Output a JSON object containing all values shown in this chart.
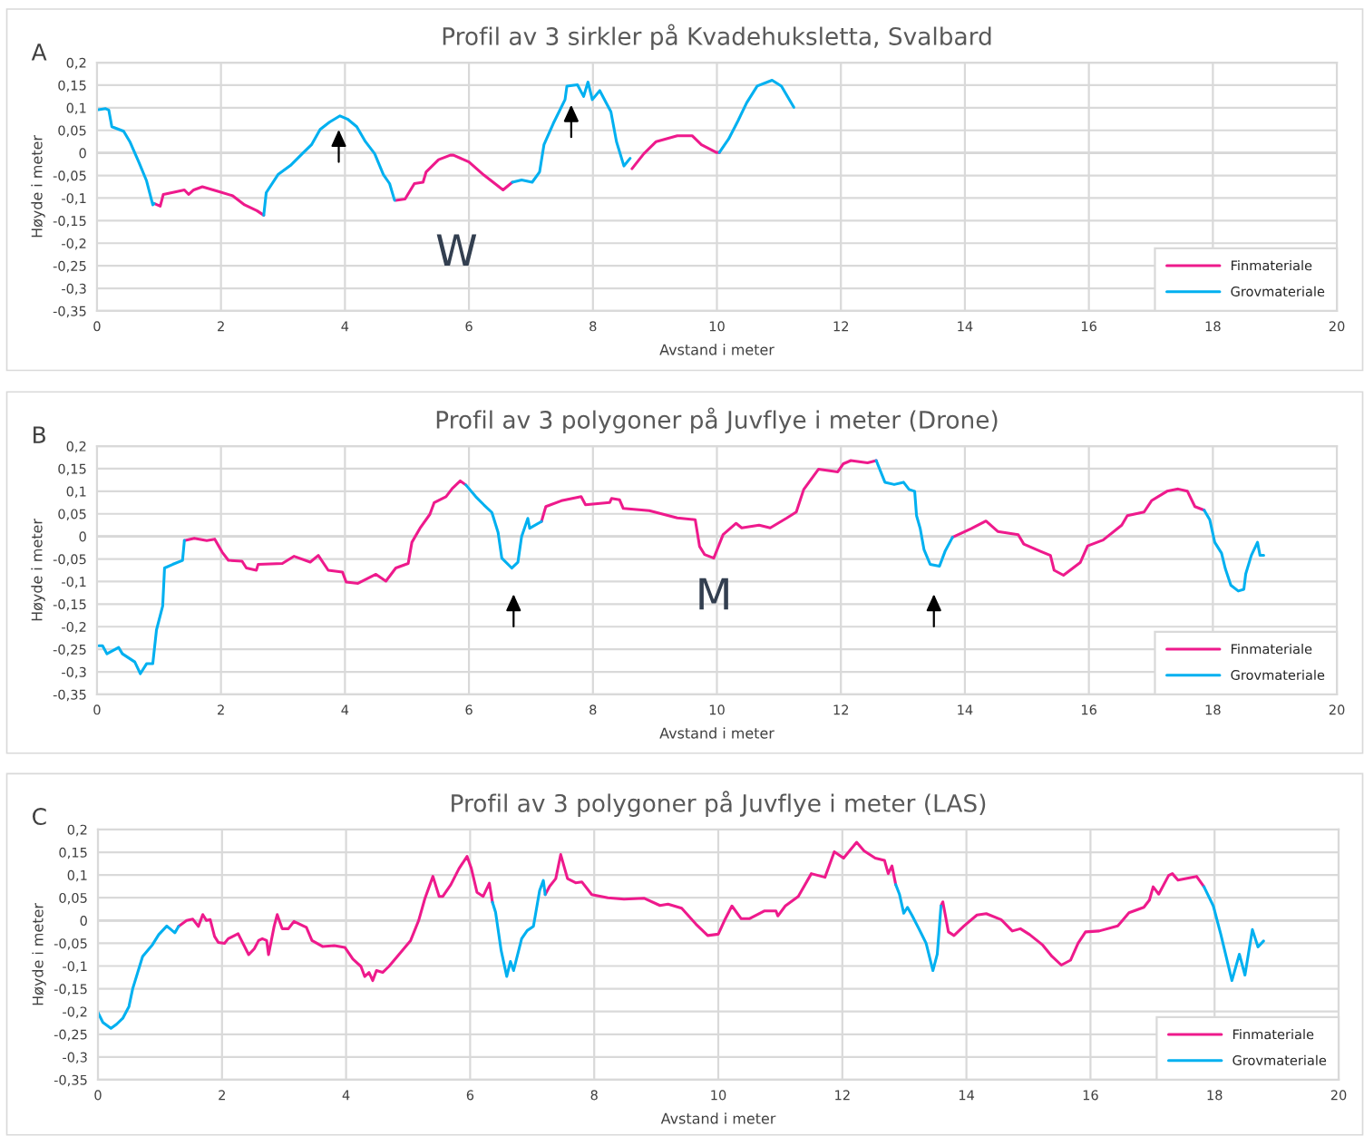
{
  "chart_data": [
    {
      "type": "line",
      "title": "Profil av 3 sirkler på Kvadehuksletta, Svalbard",
      "xlabel": "Avstand i meter",
      "ylabel": "Høyde i meter",
      "xlim": [
        0,
        20
      ],
      "xticks": [
        0,
        2,
        4,
        6,
        8,
        10,
        12,
        14,
        16,
        18,
        20
      ],
      "ylim": [
        -0.35,
        0.2
      ],
      "yticks": [
        {
          "value": 0.2,
          "label": "0,2"
        },
        {
          "value": 0.15,
          "label": "0,15"
        },
        {
          "value": 0.1,
          "label": "0,1"
        },
        {
          "value": 0.05,
          "label": "0,05"
        },
        {
          "value": 0,
          "label": "0"
        },
        {
          "value": -0.05,
          "label": "-0,05"
        },
        {
          "value": -0.1,
          "label": "-0,1"
        },
        {
          "value": -0.15,
          "label": "-0,15"
        },
        {
          "value": -0.2,
          "label": "-0,2"
        },
        {
          "value": -0.25,
          "label": "-0,25"
        },
        {
          "value": -0.3,
          "label": "-0,3"
        },
        {
          "value": -0.35,
          "label": "-0,35"
        }
      ],
      "grid": true,
      "legend": "bottom right",
      "annotations": [
        "A",
        "W"
      ],
      "series": [
        {
          "name": "Finmateriale",
          "color": "#ee1a8c",
          "x": [
            0.92,
            1.02,
            1.07,
            1.31,
            1.41,
            1.48,
            1.56,
            1.7,
            1.95,
            2.19,
            2.38,
            2.58,
            2.69,
            2.7,
            4.8,
            4.82,
            4.97,
            5.12,
            5.26,
            5.31,
            5.51,
            5.7,
            5.75,
            6.0,
            6.24,
            6.55,
            6.7,
            6.71,
            8.6,
            8.63,
            8.82,
            9.02,
            9.36,
            9.6,
            9.75,
            9.99,
            10.04
          ],
          "values": [
            -0.112,
            -0.118,
            -0.092,
            -0.085,
            -0.082,
            -0.092,
            -0.082,
            -0.075,
            -0.085,
            -0.095,
            -0.115,
            -0.128,
            -0.138,
            null,
            null,
            -0.105,
            -0.102,
            -0.068,
            -0.065,
            -0.042,
            -0.015,
            -0.005,
            -0.005,
            -0.02,
            -0.049,
            -0.082,
            -0.065,
            null,
            null,
            -0.035,
            -0.002,
            0.025,
            0.038,
            0.038,
            0.018,
            0.001,
            0.001
          ]
        },
        {
          "name": "Grovmateriale",
          "color": "#00b0f0",
          "x": [
            0.0,
            0.14,
            0.19,
            0.24,
            0.43,
            0.53,
            0.68,
            0.8,
            0.9,
            0.92,
            1.0,
            2.69,
            2.73,
            2.92,
            3.12,
            3.31,
            3.46,
            3.6,
            3.75,
            3.92,
            4.04,
            4.19,
            4.33,
            4.48,
            4.62,
            4.72,
            4.8,
            4.81,
            6.6,
            6.7,
            6.85,
            7.02,
            7.14,
            7.21,
            7.36,
            7.55,
            7.58,
            7.75,
            7.85,
            7.92,
            7.99,
            8.11,
            8.29,
            8.38,
            8.5,
            8.6,
            8.61,
            10.0,
            10.04,
            10.19,
            10.34,
            10.48,
            10.65,
            10.89,
            11.04,
            11.24
          ],
          "values": [
            0.095,
            0.098,
            0.095,
            0.058,
            0.048,
            0.025,
            -0.022,
            -0.062,
            -0.115,
            -0.112,
            null,
            -0.138,
            -0.088,
            -0.048,
            -0.028,
            -0.002,
            0.018,
            0.052,
            0.068,
            0.082,
            0.075,
            0.058,
            0.025,
            -0.002,
            -0.048,
            -0.068,
            -0.105,
            null,
            null,
            -0.065,
            -0.06,
            -0.065,
            -0.042,
            0.018,
            0.065,
            0.118,
            0.148,
            0.151,
            0.125,
            0.157,
            0.118,
            0.138,
            0.091,
            0.025,
            -0.029,
            -0.012,
            null,
            null,
            0.001,
            0.031,
            0.071,
            0.111,
            0.148,
            0.161,
            0.148,
            0.101
          ]
        }
      ]
    },
    {
      "type": "line",
      "title": "Profil av 3 polygoner på Juvflye i meter (Drone)",
      "xlabel": "Avstand i meter",
      "ylabel": "Høyde i meter",
      "xlim": [
        0,
        20
      ],
      "xticks": [
        0,
        2,
        4,
        6,
        8,
        10,
        12,
        14,
        16,
        18,
        20
      ],
      "ylim": [
        -0.35,
        0.2
      ],
      "yticks": [
        {
          "value": 0.2,
          "label": "0,2"
        },
        {
          "value": 0.15,
          "label": "0,15"
        },
        {
          "value": 0.1,
          "label": "0,1"
        },
        {
          "value": 0.05,
          "label": "0,05"
        },
        {
          "value": 0,
          "label": "0"
        },
        {
          "value": -0.05,
          "label": "-0,05"
        },
        {
          "value": -0.1,
          "label": "-0,1"
        },
        {
          "value": -0.15,
          "label": "-0,15"
        },
        {
          "value": -0.2,
          "label": "-0,2"
        },
        {
          "value": -0.25,
          "label": "-0,25"
        },
        {
          "value": -0.3,
          "label": "-0,3"
        },
        {
          "value": -0.35,
          "label": "-0,35"
        }
      ],
      "grid": true,
      "legend": "bottom right",
      "annotations": [
        "B",
        "M"
      ],
      "series": [
        {
          "name": "Finmateriale",
          "color": "#ee1a8c",
          "x": [
            1.41,
            1.57,
            1.77,
            1.9,
            2.02,
            2.12,
            2.34,
            2.41,
            2.57,
            2.6,
            2.99,
            3.18,
            3.44,
            3.57,
            3.73,
            3.96,
            4.02,
            4.21,
            4.5,
            4.66,
            4.82,
            5.02,
            5.08,
            5.21,
            5.37,
            5.44,
            5.63,
            5.73,
            5.86,
            5.95,
            5.96,
            7.16,
            7.17,
            7.24,
            7.49,
            7.81,
            7.88,
            8.27,
            8.3,
            8.43,
            8.49,
            8.91,
            9.36,
            9.65,
            9.72,
            9.8,
            9.95,
            10.1,
            10.31,
            10.4,
            10.68,
            10.86,
            11.13,
            11.28,
            11.4,
            11.64,
            11.95,
            12.04,
            12.16,
            12.43,
            12.57,
            12.58,
            13.79,
            13.8,
            14.1,
            14.34,
            14.53,
            14.86,
            14.95,
            15.22,
            15.38,
            15.44,
            15.59,
            15.86,
            15.98,
            16.23,
            16.53,
            16.62,
            16.89,
            17.01,
            17.26,
            17.44,
            17.59,
            17.71,
            17.86
          ],
          "values": [
            -0.009,
            -0.004,
            -0.009,
            -0.006,
            -0.035,
            -0.053,
            -0.055,
            -0.07,
            -0.075,
            -0.062,
            -0.06,
            -0.044,
            -0.057,
            -0.042,
            -0.075,
            -0.079,
            -0.101,
            -0.104,
            -0.084,
            -0.099,
            -0.07,
            -0.06,
            -0.013,
            0.018,
            0.049,
            0.075,
            0.088,
            0.106,
            0.123,
            0.114,
            null,
            null,
            0.033,
            0.066,
            0.079,
            0.088,
            0.07,
            0.075,
            0.084,
            0.081,
            0.062,
            0.057,
            0.041,
            0.037,
            -0.022,
            -0.04,
            -0.048,
            0.004,
            0.029,
            0.019,
            0.025,
            0.019,
            0.041,
            0.054,
            0.104,
            0.149,
            0.143,
            0.161,
            0.168,
            0.163,
            0.168,
            null,
            null,
            -0.002,
            0.017,
            0.034,
            0.011,
            0.004,
            -0.017,
            -0.033,
            -0.042,
            -0.075,
            -0.086,
            -0.058,
            -0.021,
            -0.008,
            0.025,
            0.046,
            0.054,
            0.079,
            0.1,
            0.105,
            0.1,
            0.066,
            0.058
          ]
        },
        {
          "name": "Grovmateriale",
          "color": "#00b0f0",
          "x": [
            0.03,
            0.09,
            0.16,
            0.35,
            0.41,
            0.61,
            0.7,
            0.8,
            0.9,
            0.96,
            1.06,
            1.09,
            1.22,
            1.38,
            1.41,
            1.42,
            5.94,
            5.95,
            6.11,
            6.24,
            6.37,
            6.47,
            6.53,
            6.69,
            6.79,
            6.85,
            6.95,
            6.98,
            7.17,
            7.18,
            12.56,
            12.57,
            12.71,
            12.86,
            13.01,
            13.1,
            13.19,
            13.22,
            13.28,
            13.34,
            13.44,
            13.59,
            13.68,
            13.8,
            13.81,
            17.85,
            17.86,
            17.95,
            18.03,
            18.14,
            18.2,
            18.29,
            18.41,
            18.5,
            18.53,
            18.62,
            18.72,
            18.76,
            18.82
          ],
          "values": [
            -0.242,
            -0.242,
            -0.26,
            -0.246,
            -0.26,
            -0.278,
            -0.304,
            -0.282,
            -0.282,
            -0.207,
            -0.154,
            -0.07,
            -0.062,
            -0.053,
            -0.009,
            null,
            null,
            0.114,
            0.088,
            0.07,
            0.053,
            0.009,
            -0.048,
            -0.07,
            -0.057,
            0.0,
            0.04,
            0.018,
            0.033,
            null,
            null,
            0.168,
            0.12,
            0.115,
            0.12,
            0.104,
            0.1,
            0.046,
            0.017,
            -0.029,
            -0.062,
            -0.066,
            -0.033,
            -0.002,
            null,
            null,
            0.058,
            0.037,
            -0.013,
            -0.037,
            -0.071,
            -0.108,
            -0.121,
            -0.117,
            -0.083,
            -0.042,
            -0.013,
            -0.042,
            -0.042
          ]
        }
      ]
    },
    {
      "type": "line",
      "title": "Profil av 3 polygoner på Juvflye i meter (LAS)",
      "xlabel": "Avstand i meter",
      "ylabel": "Høyde i meter",
      "xlim": [
        0,
        20
      ],
      "xticks": [
        0,
        2,
        4,
        6,
        8,
        10,
        12,
        14,
        16,
        18,
        20
      ],
      "ylim": [
        -0.35,
        0.2
      ],
      "yticks": [
        {
          "value": 0.2,
          "label": "0,2"
        },
        {
          "value": 0.15,
          "label": "0,15"
        },
        {
          "value": 0.1,
          "label": "0,1"
        },
        {
          "value": 0.05,
          "label": "0,05"
        },
        {
          "value": 0,
          "label": "0"
        },
        {
          "value": -0.05,
          "label": "-0,05"
        },
        {
          "value": -0.1,
          "label": "-0,1"
        },
        {
          "value": -0.15,
          "label": "-0,15"
        },
        {
          "value": -0.2,
          "label": "-0,2"
        },
        {
          "value": -0.25,
          "label": "-0,25"
        },
        {
          "value": -0.3,
          "label": "-0,3"
        },
        {
          "value": -0.35,
          "label": "-0,35"
        }
      ],
      "grid": true,
      "legend": "bottom right",
      "annotations": [
        "C"
      ],
      "series": [
        {
          "name": "Finmateriale",
          "color": "#ee1a8c",
          "x": [
            1.3,
            1.43,
            1.53,
            1.62,
            1.69,
            1.75,
            1.81,
            1.88,
            1.94,
            2.04,
            2.1,
            2.26,
            2.43,
            2.52,
            2.59,
            2.65,
            2.72,
            2.75,
            2.84,
            2.89,
            2.97,
            3.07,
            3.16,
            3.36,
            3.45,
            3.62,
            3.81,
            3.98,
            4.11,
            4.24,
            4.3,
            4.37,
            4.43,
            4.49,
            4.59,
            4.69,
            4.85,
            5.04,
            5.17,
            5.27,
            5.4,
            5.5,
            5.56,
            5.69,
            5.82,
            5.95,
            6.02,
            6.11,
            6.21,
            6.31,
            6.36,
            6.37,
            7.2,
            7.21,
            7.28,
            7.38,
            7.46,
            7.57,
            7.7,
            7.8,
            7.96,
            8.22,
            8.48,
            8.8,
            9.06,
            9.19,
            9.41,
            9.64,
            9.83,
            10.0,
            10.1,
            10.22,
            10.37,
            10.5,
            10.74,
            10.93,
            10.96,
            11.08,
            11.29,
            11.5,
            11.72,
            11.87,
            12.02,
            12.23,
            12.35,
            12.53,
            12.68,
            12.74,
            12.8,
            12.86,
            12.87,
            13.58,
            13.59,
            13.62,
            13.71,
            13.8,
            13.96,
            14.17,
            14.32,
            14.56,
            14.74,
            14.87,
            15.02,
            15.23,
            15.38,
            15.53,
            15.68,
            15.8,
            15.92,
            16.14,
            16.44,
            16.62,
            16.86,
            16.95,
            17.01,
            17.1,
            17.26,
            17.32,
            17.41,
            17.71,
            17.83
          ],
          "values": [
            -0.013,
            0.0,
            0.003,
            -0.013,
            0.013,
            0.0,
            0.002,
            -0.035,
            -0.048,
            -0.05,
            -0.04,
            -0.029,
            -0.075,
            -0.062,
            -0.044,
            -0.04,
            -0.044,
            -0.075,
            -0.013,
            0.013,
            -0.018,
            -0.018,
            -0.002,
            -0.015,
            -0.044,
            -0.057,
            -0.055,
            -0.059,
            -0.085,
            -0.101,
            -0.123,
            -0.114,
            -0.132,
            -0.11,
            -0.114,
            -0.101,
            -0.075,
            -0.044,
            0.0,
            0.048,
            0.097,
            0.053,
            0.053,
            0.079,
            0.114,
            0.141,
            0.114,
            0.062,
            0.053,
            0.082,
            0.04,
            null,
            null,
            0.057,
            0.075,
            0.092,
            0.145,
            0.092,
            0.083,
            0.085,
            0.057,
            0.05,
            0.047,
            0.049,
            0.033,
            0.036,
            0.027,
            -0.008,
            -0.033,
            -0.03,
            0.0,
            0.032,
            0.004,
            0.004,
            0.021,
            0.021,
            0.01,
            0.032,
            0.053,
            0.103,
            0.095,
            0.151,
            0.137,
            0.172,
            0.153,
            0.137,
            0.132,
            0.103,
            0.12,
            0.079,
            null,
            null,
            0.032,
            0.041,
            -0.025,
            -0.033,
            -0.012,
            0.012,
            0.015,
            0.002,
            -0.023,
            -0.018,
            -0.031,
            -0.054,
            -0.079,
            -0.098,
            -0.087,
            -0.05,
            -0.025,
            -0.023,
            -0.012,
            0.017,
            0.029,
            0.045,
            0.074,
            0.058,
            0.099,
            0.103,
            0.089,
            0.097,
            0.074
          ]
        },
        {
          "name": "Grovmateriale",
          "color": "#00b0f0",
          "x": [
            0.0,
            0.08,
            0.21,
            0.3,
            0.4,
            0.5,
            0.56,
            0.72,
            0.88,
            0.98,
            1.11,
            1.24,
            1.3,
            1.31,
            6.35,
            6.36,
            6.41,
            6.5,
            6.59,
            6.65,
            6.7,
            6.83,
            6.92,
            7.02,
            7.12,
            7.18,
            7.21,
            7.22,
            12.85,
            12.86,
            12.92,
            12.99,
            13.05,
            13.12,
            13.23,
            13.35,
            13.46,
            13.53,
            13.59,
            13.6,
            17.82,
            17.83,
            17.98,
            18.1,
            18.28,
            18.4,
            18.49,
            18.61,
            18.7,
            18.79
          ],
          "values": [
            -0.202,
            -0.224,
            -0.237,
            -0.228,
            -0.215,
            -0.189,
            -0.15,
            -0.079,
            -0.053,
            -0.031,
            -0.012,
            -0.027,
            -0.013,
            null,
            null,
            0.04,
            0.018,
            -0.066,
            -0.123,
            -0.09,
            -0.11,
            -0.04,
            -0.022,
            -0.013,
            0.066,
            0.088,
            0.057,
            null,
            null,
            0.079,
            0.058,
            0.016,
            0.029,
            0.012,
            -0.017,
            -0.05,
            -0.11,
            -0.074,
            0.032,
            null,
            null,
            0.074,
            0.032,
            -0.03,
            -0.132,
            -0.074,
            -0.12,
            -0.02,
            -0.058,
            -0.045
          ]
        }
      ]
    }
  ]
}
